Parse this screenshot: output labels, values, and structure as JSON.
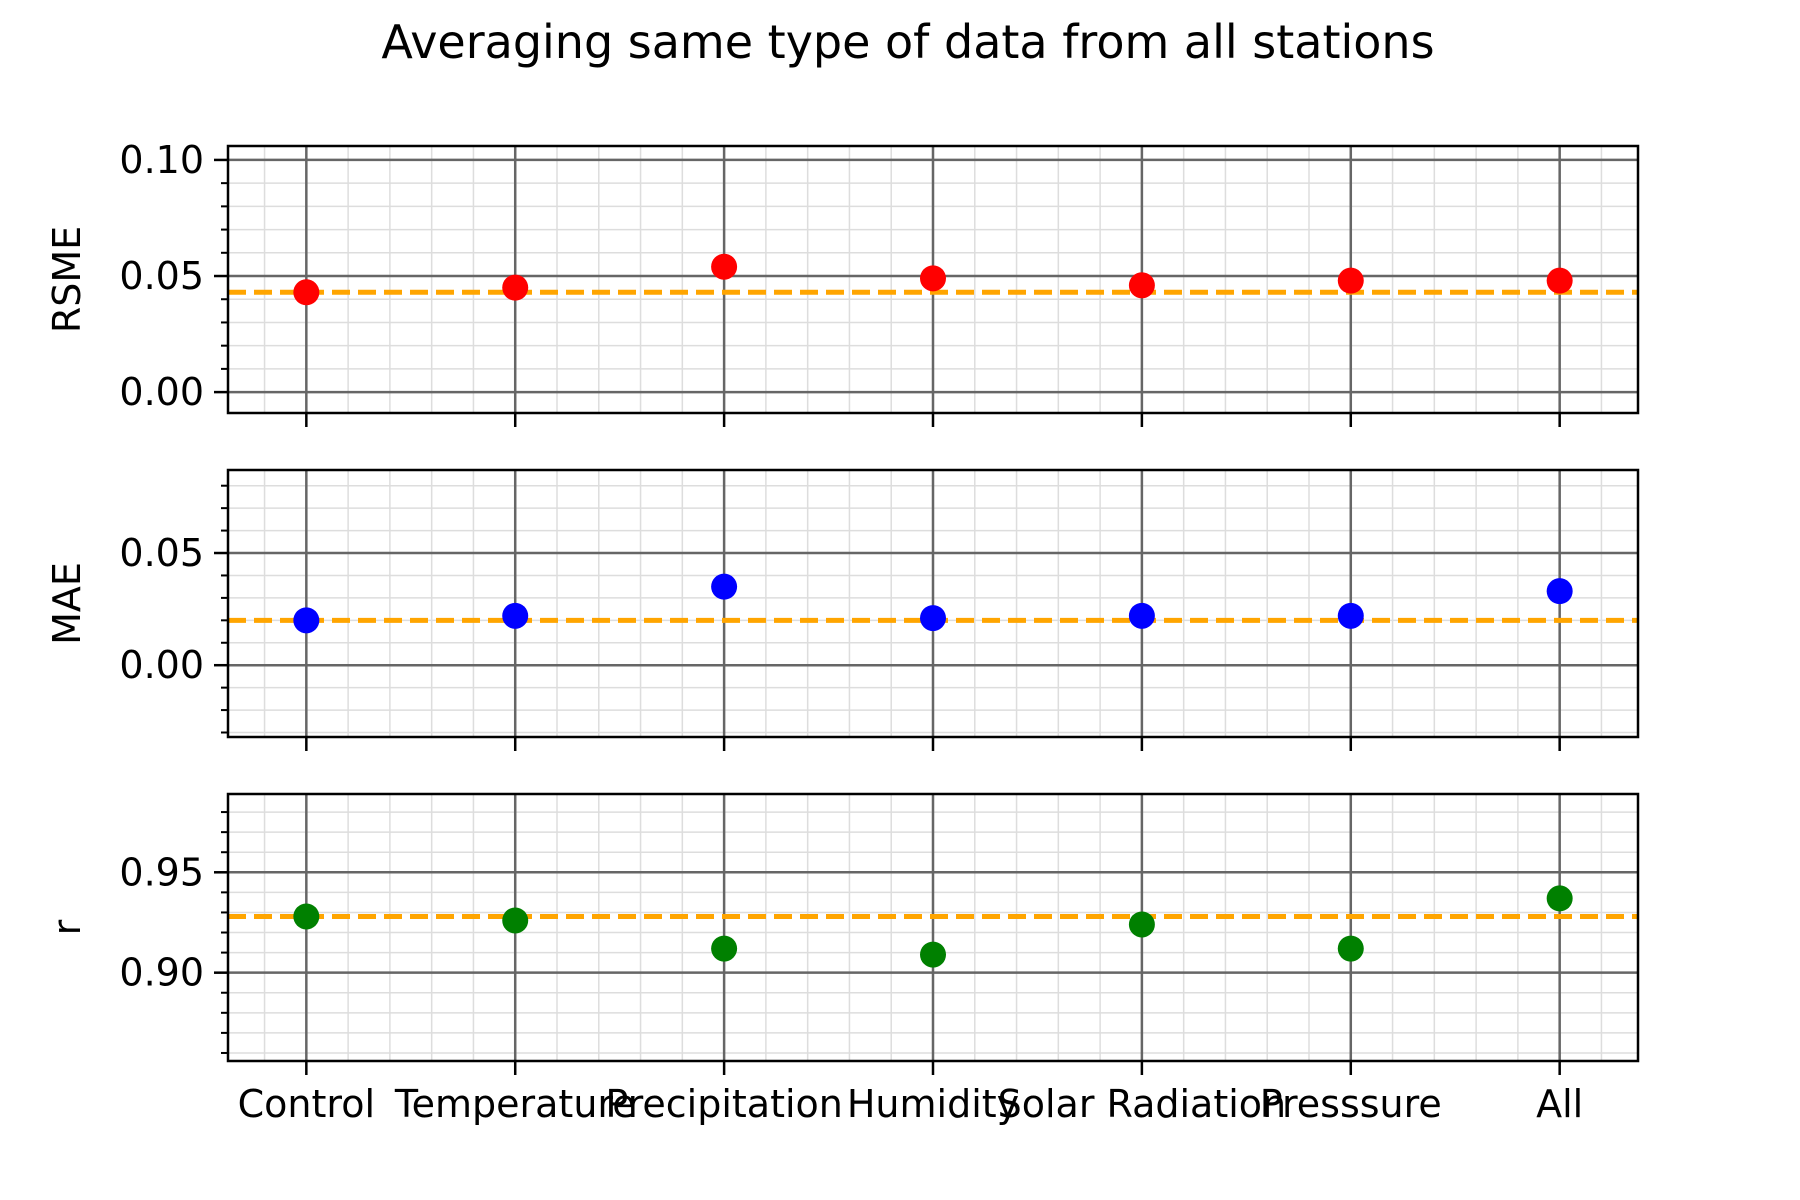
{
  "chart_data": {
    "type": "scatter",
    "title": "Averaging same type of data from all stations",
    "categories": [
      "Control",
      "Temperature",
      "Precipitation",
      "Humidity",
      "Solar Radiation",
      "Presssure",
      "All"
    ],
    "grid": true,
    "subplots": [
      {
        "ylabel": "RSME",
        "ylim": [
          -0.009,
          0.106
        ],
        "yticks": [
          0.0,
          0.05,
          0.1
        ],
        "ytick_labels": [
          "0.00",
          "0.05",
          "0.10"
        ],
        "values": [
          0.043,
          0.045,
          0.054,
          0.049,
          0.046,
          0.048,
          0.048
        ],
        "reference_line": 0.043,
        "marker_color": "#ff0000"
      },
      {
        "ylabel": "MAE",
        "ylim": [
          -0.032,
          0.087
        ],
        "yticks": [
          0.0,
          0.05
        ],
        "ytick_labels": [
          "0.00",
          "0.05"
        ],
        "values": [
          0.02,
          0.022,
          0.035,
          0.021,
          0.022,
          0.022,
          0.033
        ],
        "reference_line": 0.02,
        "marker_color": "#0000ff"
      },
      {
        "ylabel": "r",
        "ylim": [
          0.856,
          0.989
        ],
        "yticks": [
          0.9,
          0.95
        ],
        "ytick_labels": [
          "0.90",
          "0.95"
        ],
        "values": [
          0.928,
          0.926,
          0.912,
          0.909,
          0.924,
          0.912,
          0.937
        ],
        "reference_line": 0.928,
        "marker_color": "#008000"
      }
    ],
    "reference_line_color": "#ffa500",
    "grid_major_color": "#666666",
    "grid_minor_color": "#dddddd"
  }
}
